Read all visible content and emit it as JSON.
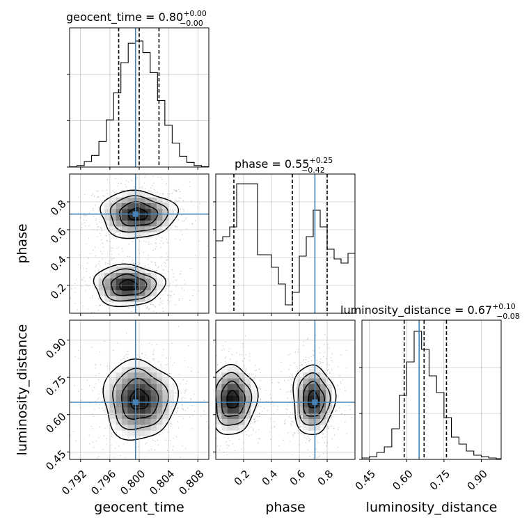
{
  "chart_data": {
    "type": "corner",
    "parameters": [
      "geocent_time",
      "phase",
      "luminosity_distance"
    ],
    "titles": {
      "geocent_time": {
        "name": "geocent_time",
        "median": "0.80",
        "plus": "+0.00",
        "minus": "−0.00"
      },
      "phase": {
        "name": "phase",
        "median": "0.55",
        "plus": "+0.25",
        "minus": "−0.42"
      },
      "luminosity_distance": {
        "name": "luminosity_distance",
        "median": "0.67",
        "plus": "+0.10",
        "minus": "−0.08"
      }
    },
    "axis_labels": {
      "geocent_time": "geocent_time",
      "phase": "phase",
      "luminosity_distance": "luminosity_distance"
    },
    "ranges": {
      "geocent_time": [
        0.7905,
        0.8095
      ],
      "phase": [
        0.0,
        1.0
      ],
      "luminosity_distance": [
        0.42,
        0.98
      ]
    },
    "ticks": {
      "geocent_time": {
        "values": [
          0.792,
          0.796,
          0.8,
          0.804,
          0.808
        ],
        "labels": [
          "0.792",
          "0.796",
          "0.800",
          "0.804",
          "0.808"
        ]
      },
      "phase": {
        "values": [
          0.2,
          0.4,
          0.6,
          0.8
        ],
        "labels": [
          "0.2",
          "0.4",
          "0.6",
          "0.8"
        ]
      },
      "luminosity_distance": {
        "values": [
          0.45,
          0.6,
          0.75,
          0.9
        ],
        "labels": [
          "0.45",
          "0.60",
          "0.75",
          "0.90"
        ]
      }
    },
    "truths": {
      "geocent_time": 0.7995,
      "phase": 0.712,
      "luminosity_distance": 0.65
    },
    "quantiles": {
      "geocent_time": [
        0.7972,
        0.8,
        0.8027
      ],
      "phase": [
        0.13,
        0.55,
        0.8
      ],
      "luminosity_distance": [
        0.59,
        0.67,
        0.76
      ]
    },
    "histograms": {
      "geocent_time": {
        "edges": [
          0.7905,
          0.7915,
          0.7925,
          0.7935,
          0.7945,
          0.7955,
          0.7965,
          0.7975,
          0.7985,
          0.7995,
          0.8005,
          0.8015,
          0.8025,
          0.8035,
          0.8045,
          0.8055,
          0.8065,
          0.8075,
          0.8085,
          0.8095
        ],
        "counts": [
          0.3,
          2,
          7,
          15,
          33,
          61,
          96,
          135,
          160,
          163,
          148,
          122,
          86,
          54,
          31,
          14,
          6,
          2,
          0.5
        ]
      },
      "phase": {
        "edges": [
          0.0,
          0.05,
          0.1,
          0.15,
          0.2,
          0.25,
          0.3,
          0.35,
          0.4,
          0.45,
          0.5,
          0.55,
          0.6,
          0.65,
          0.7,
          0.75,
          0.8,
          0.85,
          0.9,
          0.95,
          1.0
        ],
        "counts": [
          0.52,
          0.55,
          0.62,
          0.93,
          0.93,
          0.93,
          0.42,
          0.42,
          0.33,
          0.21,
          0.06,
          0.15,
          0.41,
          0.55,
          0.74,
          0.62,
          0.46,
          0.39,
          0.36,
          0.43
        ]
      },
      "luminosity_distance": {
        "edges": [
          0.42,
          0.45,
          0.48,
          0.51,
          0.54,
          0.57,
          0.6,
          0.63,
          0.66,
          0.69,
          0.72,
          0.75,
          0.78,
          0.81,
          0.84,
          0.87,
          0.9,
          0.93,
          0.96,
          0.98
        ],
        "counts": [
          1,
          2,
          5,
          9,
          22,
          46,
          70,
          92,
          79,
          60,
          48,
          30,
          16,
          11,
          6,
          3,
          2,
          1,
          0.5
        ]
      }
    },
    "y_range": {
      "geocent_time": [
        0,
        180
      ],
      "phase": [
        0,
        1.0
      ],
      "luminosity_distance": [
        0,
        100
      ]
    },
    "histogram_ticks": {
      "geocent_time": [
        0,
        60,
        120
      ],
      "phase": [
        0.2,
        0.4,
        0.6,
        0.8
      ],
      "luminosity_distance": [
        0,
        33,
        66
      ]
    },
    "density_blobs": {
      "phase_vs_geocent_time": [
        {
          "cx": 0.7998,
          "cy": 0.71,
          "sx": 0.0026,
          "sy": 0.085,
          "w": 1.0
        },
        {
          "cx": 0.7985,
          "cy": 0.2,
          "sx": 0.0024,
          "sy": 0.075,
          "w": 1.0
        }
      ],
      "luminosity_distance_vs_geocent_time": [
        {
          "cx": 0.8,
          "cy": 0.66,
          "sx": 0.0025,
          "sy": 0.08,
          "w": 1.0
        }
      ],
      "luminosity_distance_vs_phase": [
        {
          "cx": 0.12,
          "cy": 0.66,
          "sx": 0.085,
          "sy": 0.07,
          "w": 1.0
        },
        {
          "cx": 0.7,
          "cy": 0.66,
          "sx": 0.075,
          "sy": 0.07,
          "w": 0.95
        }
      ]
    },
    "colors": {
      "truth": "#4682b4",
      "line": "#000000",
      "grid": "#b0b0b0",
      "points": "#999999"
    }
  }
}
